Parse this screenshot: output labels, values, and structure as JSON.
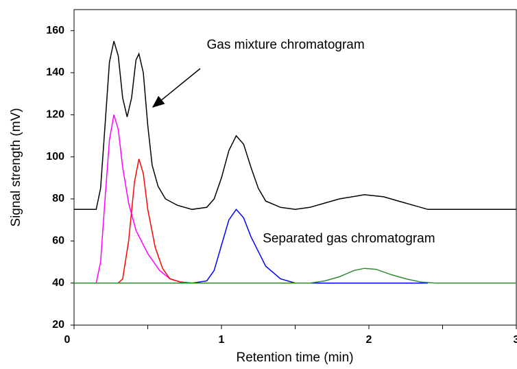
{
  "chart_data": {
    "type": "line",
    "xlabel": "Retention time (min)",
    "ylabel": "Signal strength (mV)",
    "xlim": [
      0,
      3
    ],
    "xticks": [
      0,
      1,
      2,
      3
    ],
    "xminor_ticks": [
      0.5,
      1.5,
      2.5
    ],
    "ylim": [
      20,
      170
    ],
    "yticks": [
      20,
      40,
      60,
      80,
      100,
      120,
      140,
      160
    ],
    "annotations": [
      {
        "text": "Gas mixture chromatogram",
        "x": 0.9,
        "y": 153
      },
      {
        "text": "Separated gas chromatogram",
        "x": 1.28,
        "y": 61
      }
    ],
    "series": [
      {
        "color": "#000000",
        "x": [
          0,
          0.15,
          0.18,
          0.21,
          0.24,
          0.27,
          0.3,
          0.33,
          0.36,
          0.39,
          0.42,
          0.44,
          0.47,
          0.5,
          0.53,
          0.57,
          0.62,
          0.7,
          0.8,
          0.9,
          0.95,
          1.0,
          1.05,
          1.1,
          1.15,
          1.2,
          1.25,
          1.3,
          1.4,
          1.5,
          1.6,
          1.7,
          1.8,
          1.97,
          2.1,
          2.2,
          2.3,
          2.4,
          3
        ],
        "values": [
          75,
          75,
          85,
          115,
          145,
          155,
          148,
          128,
          119,
          128,
          146,
          149,
          140,
          115,
          96,
          86,
          80,
          77,
          75,
          76,
          80,
          90,
          103,
          110,
          106,
          95,
          85,
          79,
          76,
          75,
          76,
          78,
          80,
          82,
          81,
          79,
          77,
          75,
          75
        ]
      },
      {
        "color": "#ff00ff",
        "x": [
          0,
          0.15,
          0.18,
          0.21,
          0.24,
          0.27,
          0.3,
          0.33,
          0.37,
          0.42,
          0.5,
          0.58,
          0.65,
          0.72,
          0.8
        ],
        "values": [
          40,
          40,
          50,
          80,
          108,
          120,
          113,
          95,
          78,
          65,
          54,
          46,
          42,
          40.5,
          40
        ]
      },
      {
        "color": "#ff0000",
        "x": [
          0.3,
          0.33,
          0.37,
          0.41,
          0.44,
          0.47,
          0.5,
          0.55,
          0.6,
          0.65,
          0.72,
          0.8
        ],
        "values": [
          40,
          42,
          60,
          88,
          99,
          92,
          75,
          57,
          47,
          42,
          40.5,
          40
        ]
      },
      {
        "color": "#0000ff",
        "x": [
          0.8,
          0.9,
          0.95,
          1.0,
          1.05,
          1.1,
          1.15,
          1.2,
          1.3,
          1.4,
          1.5,
          2.4
        ],
        "values": [
          40,
          41,
          46,
          58,
          70,
          75,
          71,
          62,
          48,
          42,
          40,
          40
        ]
      },
      {
        "color": "#2e8b2e",
        "x": [
          0,
          1.6,
          1.7,
          1.8,
          1.9,
          1.97,
          2.05,
          2.15,
          2.25,
          2.35,
          2.45,
          3
        ],
        "values": [
          40,
          40,
          41,
          43,
          46,
          47,
          46.5,
          44,
          42,
          40.5,
          40,
          40
        ]
      }
    ]
  }
}
